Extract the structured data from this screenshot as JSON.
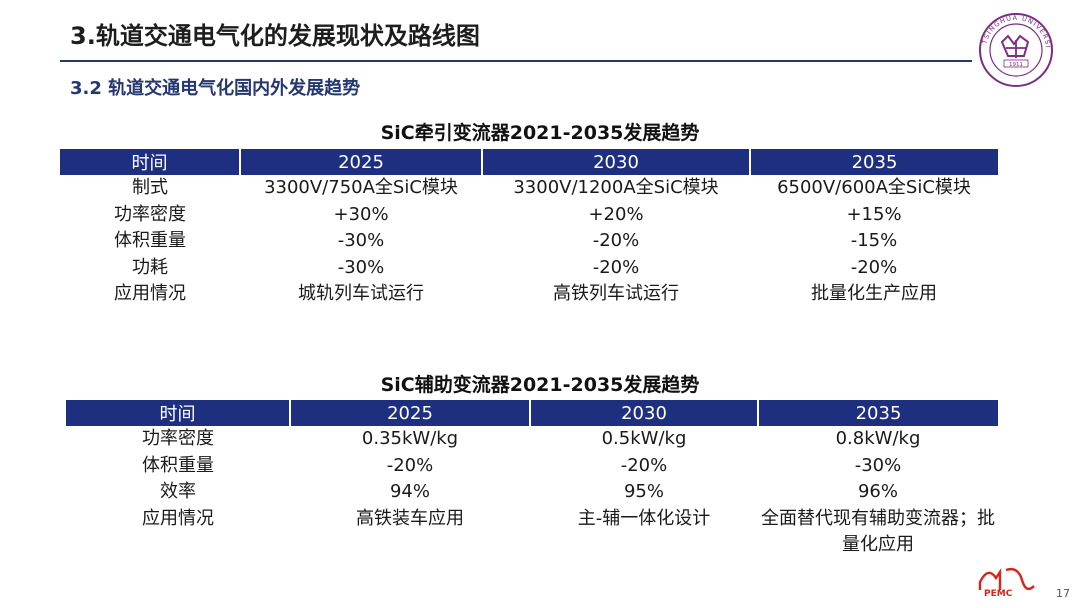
{
  "header": {
    "title": "3.轨道交通电气化的发展现状及路线图",
    "subtitle": "3.2 轨道交通电气化国内外发展趋势",
    "logo_text": "TSINGHUA UNIVERSITY 1911",
    "accent_color": "#24376e"
  },
  "traction_table": {
    "caption": "SiC牵引变流器2021-2035发展趋势",
    "header_color": "#1e2f80",
    "columns": [
      "时间",
      "2025",
      "2030",
      "2035"
    ],
    "rows": [
      [
        "制式",
        "3300V/750A全SiC模块",
        "3300V/1200A全SiC模块",
        "6500V/600A全SiC模块"
      ],
      [
        "功率密度",
        "+30%",
        "+20%",
        "+15%"
      ],
      [
        "体积重量",
        "-30%",
        "-20%",
        "-15%"
      ],
      [
        "功耗",
        "-30%",
        "-20%",
        "-20%"
      ],
      [
        "应用情况",
        "城轨列车试运行",
        "高铁列车试运行",
        "批量化生产应用"
      ]
    ]
  },
  "auxiliary_table": {
    "caption": "SiC辅助变流器2021-2035发展趋势",
    "header_color": "#1e2f80",
    "columns": [
      "时间",
      "2025",
      "2030",
      "2035"
    ],
    "rows": [
      [
        "功率密度",
        "0.35kW/kg",
        "0.5kW/kg",
        "0.8kW/kg"
      ],
      [
        "体积重量",
        "-20%",
        "-20%",
        "-30%"
      ],
      [
        "效率",
        "94%",
        "95%",
        "96%"
      ],
      [
        "应用情况",
        "高铁装车应用",
        "主-辅一体化设计",
        "全面替代现有辅助变流器；批量化应用"
      ]
    ]
  },
  "footer": {
    "logo_label": "PEMC",
    "logo_color": "#d9241b",
    "page_number": "17"
  }
}
